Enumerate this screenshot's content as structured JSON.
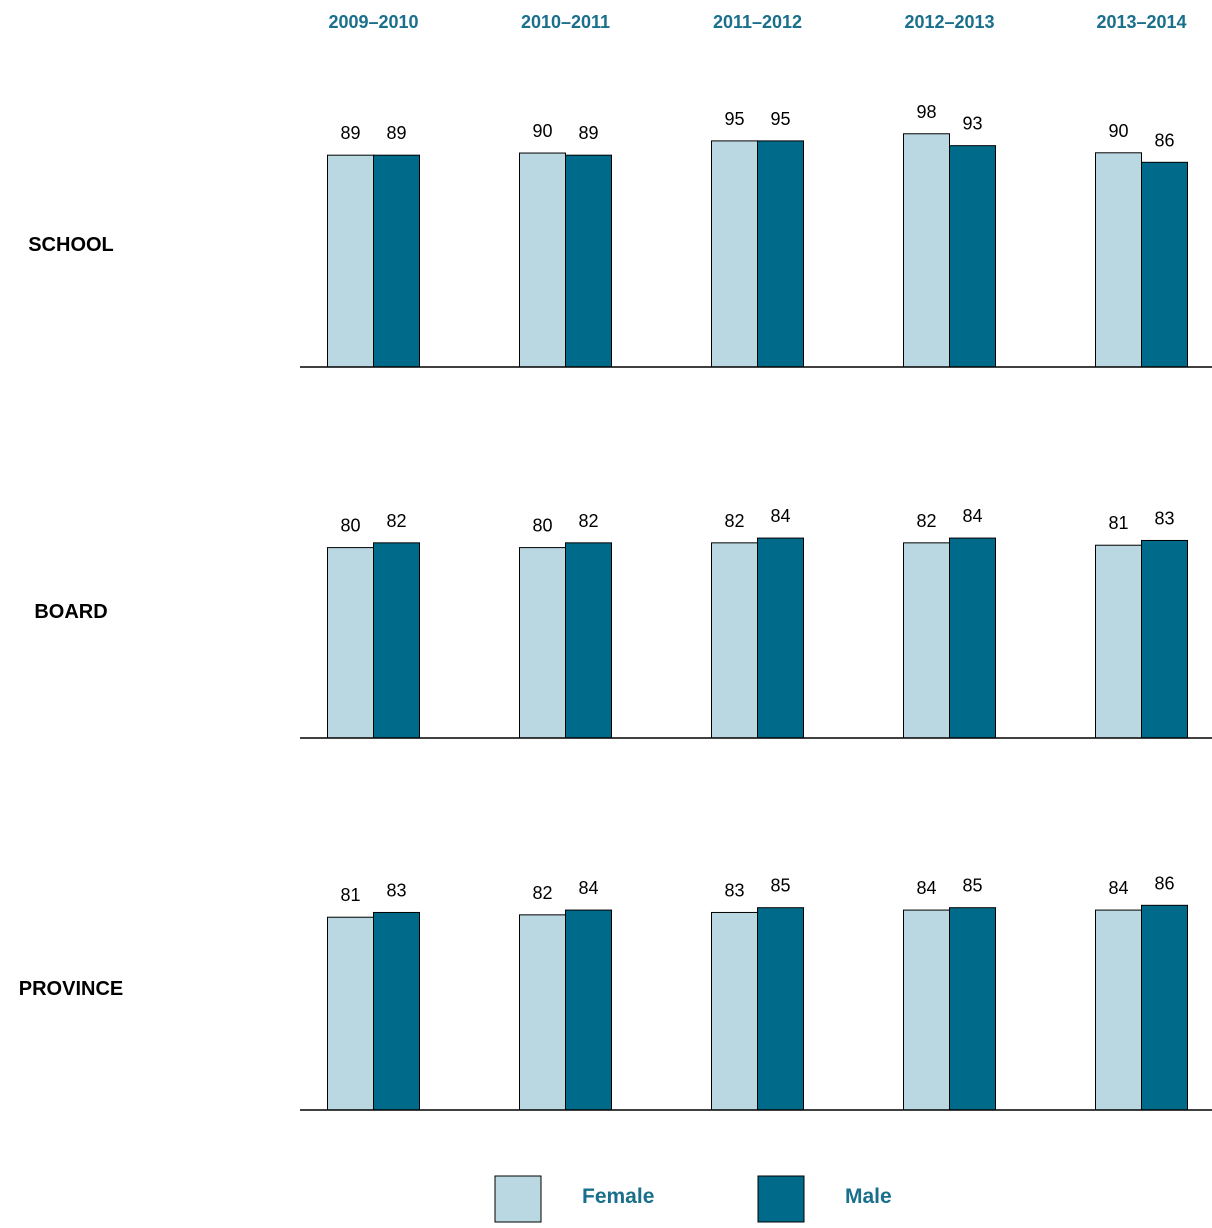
{
  "chart_data": {
    "type": "bar",
    "categories": [
      "2009–2010",
      "2010–2011",
      "2011–2012",
      "2012–2013",
      "2013–2014"
    ],
    "panels": [
      {
        "label": "SCHOOL",
        "series": [
          {
            "name": "Female",
            "values": [
              89,
              89.9,
              95,
              98,
              90
            ]
          },
          {
            "name": "Male",
            "values": [
              89,
              89,
              95,
              93,
              86
            ]
          }
        ],
        "data_labels": {
          "Female": [
            "89",
            "90",
            "95",
            "98",
            "90"
          ],
          "Male": [
            "89",
            "89",
            "95",
            "93",
            "86"
          ]
        }
      },
      {
        "label": "BOARD",
        "series": [
          {
            "name": "Female",
            "values": [
              80,
              80,
              82,
              82,
              81
            ]
          },
          {
            "name": "Male",
            "values": [
              82,
              82,
              84,
              84,
              83
            ]
          }
        ],
        "data_labels": {
          "Female": [
            "80",
            "80",
            "82",
            "82",
            "81"
          ],
          "Male": [
            "82",
            "82",
            "84",
            "84",
            "83"
          ]
        }
      },
      {
        "label": "PROVINCE",
        "series": [
          {
            "name": "Female",
            "values": [
              81,
              82,
              83,
              84,
              84
            ]
          },
          {
            "name": "Male",
            "values": [
              83,
              84,
              85,
              85,
              86
            ]
          }
        ],
        "data_labels": {
          "Female": [
            "81",
            "82",
            "83",
            "84",
            "84"
          ],
          "Male": [
            "83",
            "84",
            "85",
            "85",
            "86"
          ]
        }
      }
    ],
    "legend": [
      {
        "name": "Female",
        "color": "#bad8e2"
      },
      {
        "name": "Male",
        "color": "#006a8a"
      }
    ],
    "legend_position": "bottom-center",
    "colors": {
      "female": "#bad8e2",
      "male": "#006a8a",
      "header": "#1a6f8c",
      "axis": "#000000"
    },
    "ylim": [
      0,
      100
    ],
    "grid": false
  }
}
